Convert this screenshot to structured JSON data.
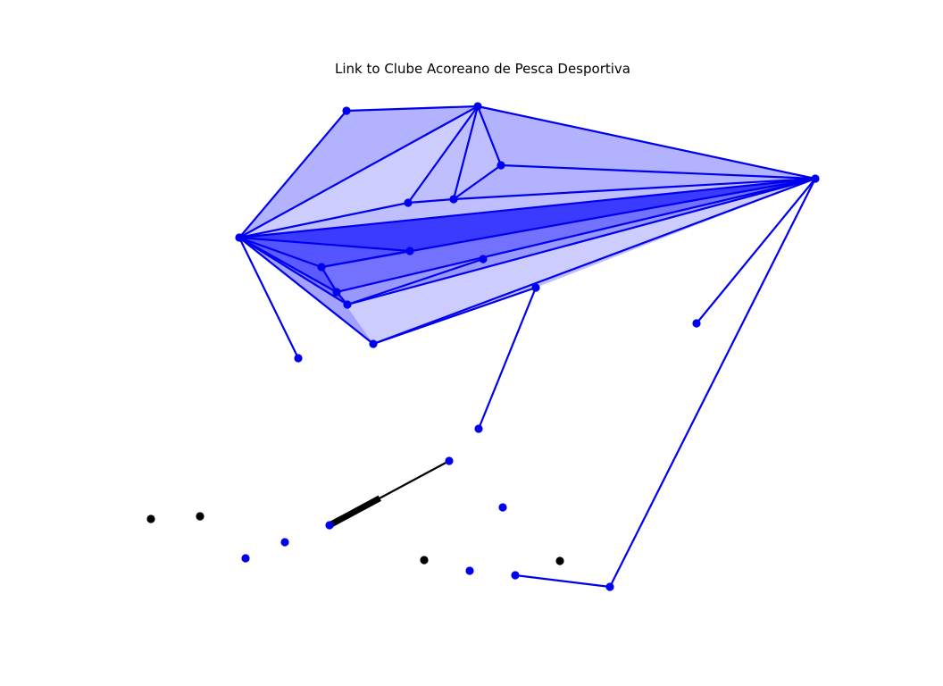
{
  "figure": {
    "title": "Link to Clube Acoreano de Pesca Desportiva"
  },
  "colors": {
    "node_blue": "#0000ee",
    "edge_blue": "#0000ee",
    "fill_blue": "#0000ff",
    "node_black": "#000000",
    "edge_black": "#000000"
  },
  "graph": {
    "nodes": [
      {
        "id": "n1",
        "color": "blue"
      },
      {
        "id": "n2",
        "color": "blue"
      },
      {
        "id": "n3",
        "color": "blue"
      },
      {
        "id": "n4",
        "color": "blue"
      },
      {
        "id": "n5",
        "color": "blue"
      },
      {
        "id": "n6",
        "color": "blue"
      },
      {
        "id": "n7",
        "color": "blue"
      },
      {
        "id": "n8",
        "color": "blue"
      },
      {
        "id": "n9",
        "color": "blue"
      },
      {
        "id": "n10",
        "color": "blue"
      },
      {
        "id": "n11",
        "color": "blue"
      },
      {
        "id": "n12",
        "color": "blue"
      },
      {
        "id": "n13",
        "color": "blue"
      },
      {
        "id": "n14",
        "color": "blue"
      },
      {
        "id": "n15",
        "color": "blue"
      },
      {
        "id": "n16",
        "color": "blue"
      },
      {
        "id": "n17",
        "color": "blue"
      },
      {
        "id": "n18",
        "color": "blue"
      },
      {
        "id": "n19",
        "color": "blue"
      },
      {
        "id": "n20",
        "color": "blue"
      },
      {
        "id": "n21",
        "color": "blue"
      },
      {
        "id": "n22",
        "color": "blue"
      },
      {
        "id": "n23",
        "color": "blue"
      },
      {
        "id": "n24",
        "color": "blue"
      },
      {
        "id": "n25",
        "color": "blue"
      },
      {
        "id": "n26",
        "color": "black"
      },
      {
        "id": "n27",
        "color": "black"
      },
      {
        "id": "n28",
        "color": "black"
      },
      {
        "id": "n29",
        "color": "black"
      }
    ],
    "edges": [
      {
        "from": "n1",
        "to": "n2",
        "color": "blue"
      },
      {
        "from": "n1",
        "to": "n4",
        "color": "blue"
      },
      {
        "from": "n2",
        "to": "n4",
        "color": "blue"
      },
      {
        "from": "n2",
        "to": "n3",
        "color": "blue"
      },
      {
        "from": "n2",
        "to": "n5",
        "color": "blue"
      },
      {
        "from": "n2",
        "to": "n6",
        "color": "blue"
      },
      {
        "from": "n2",
        "to": "n7",
        "color": "blue"
      },
      {
        "from": "n5",
        "to": "n3",
        "color": "blue"
      },
      {
        "from": "n5",
        "to": "n7",
        "color": "blue"
      },
      {
        "from": "n6",
        "to": "n7",
        "color": "blue"
      },
      {
        "from": "n7",
        "to": "n3",
        "color": "blue"
      },
      {
        "from": "n4",
        "to": "n6",
        "color": "blue"
      },
      {
        "from": "n4",
        "to": "n3",
        "color": "blue"
      },
      {
        "from": "n4",
        "to": "n8",
        "color": "blue"
      },
      {
        "from": "n4",
        "to": "n9",
        "color": "blue"
      },
      {
        "from": "n4",
        "to": "n11",
        "color": "blue"
      },
      {
        "from": "n4",
        "to": "n12",
        "color": "blue"
      },
      {
        "from": "n4",
        "to": "n14",
        "color": "blue"
      },
      {
        "from": "n4",
        "to": "n15",
        "color": "blue"
      },
      {
        "from": "n9",
        "to": "n8",
        "color": "blue"
      },
      {
        "from": "n9",
        "to": "n11",
        "color": "blue"
      },
      {
        "from": "n9",
        "to": "n3",
        "color": "blue"
      },
      {
        "from": "n11",
        "to": "n12",
        "color": "blue"
      },
      {
        "from": "n11",
        "to": "n3",
        "color": "blue"
      },
      {
        "from": "n12",
        "to": "n3",
        "color": "blue"
      },
      {
        "from": "n12",
        "to": "n10",
        "color": "blue"
      },
      {
        "from": "n14",
        "to": "n13",
        "color": "blue"
      },
      {
        "from": "n14",
        "to": "n3",
        "color": "blue"
      },
      {
        "from": "n13",
        "to": "n16",
        "color": "blue"
      },
      {
        "from": "n3",
        "to": "n17",
        "color": "blue"
      },
      {
        "from": "n3",
        "to": "n24",
        "color": "blue"
      },
      {
        "from": "n24",
        "to": "n23",
        "color": "blue"
      },
      {
        "from": "n18",
        "to": "n21",
        "color": "black"
      }
    ],
    "faces": [
      {
        "nodes": [
          "n1",
          "n2",
          "n4"
        ],
        "opacity": 0.3
      },
      {
        "nodes": [
          "n2",
          "n4",
          "n6"
        ],
        "opacity": 0.2
      },
      {
        "nodes": [
          "n2",
          "n6",
          "n7"
        ],
        "opacity": 0.25
      },
      {
        "nodes": [
          "n2",
          "n7",
          "n5"
        ],
        "opacity": 0.25
      },
      {
        "nodes": [
          "n2",
          "n5",
          "n3"
        ],
        "opacity": 0.3
      },
      {
        "nodes": [
          "n5",
          "n7",
          "n3"
        ],
        "opacity": 0.3
      },
      {
        "nodes": [
          "n6",
          "n7",
          "n3"
        ],
        "opacity": 0.25
      },
      {
        "nodes": [
          "n4",
          "n6",
          "n3"
        ],
        "opacity": 0.25
      },
      {
        "nodes": [
          "n4",
          "n8",
          "n3"
        ],
        "opacity": 0.3
      },
      {
        "nodes": [
          "n4",
          "n9",
          "n3"
        ],
        "opacity": 0.25
      },
      {
        "nodes": [
          "n4",
          "n11",
          "n3"
        ],
        "opacity": 0.25
      },
      {
        "nodes": [
          "n4",
          "n12",
          "n3"
        ],
        "opacity": 0.25
      },
      {
        "nodes": [
          "n4",
          "n14",
          "n3"
        ],
        "opacity": 0.2
      },
      {
        "nodes": [
          "n9",
          "n8",
          "n3"
        ],
        "opacity": 0.2
      },
      {
        "nodes": [
          "n9",
          "n11",
          "n12"
        ],
        "opacity": 0.2
      },
      {
        "nodes": [
          "n4",
          "n9",
          "n11"
        ],
        "opacity": 0.2
      },
      {
        "nodes": [
          "n4",
          "n11",
          "n14"
        ],
        "opacity": 0.2
      },
      {
        "nodes": [
          "n14",
          "n13",
          "n3"
        ],
        "opacity": 0.25
      }
    ]
  }
}
